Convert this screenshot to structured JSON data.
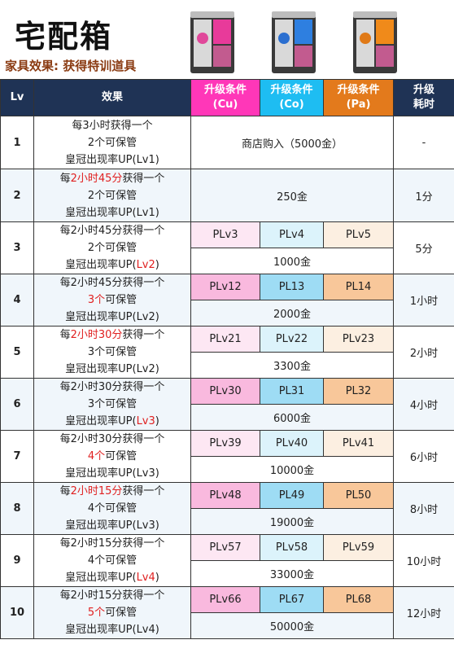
{
  "header": {
    "title": "宅配箱",
    "subtitle": "家具效果: 获得特训道具"
  },
  "columns": {
    "lv": "Lv",
    "effect": "效果",
    "cu_1": "升级条件",
    "cu_2": "(Cu)",
    "co_1": "升级条件",
    "co_2": "(Co)",
    "pa_1": "升级条件",
    "pa_2": "(Pa)",
    "time_1": "升级",
    "time_2": "耗时"
  },
  "rows": [
    {
      "lv": "1",
      "e1a": "每3小时获得一个",
      "e1b": "",
      "e1c": "",
      "e2a": "2个可保管",
      "e2b": "",
      "e3a": "皇冠出现率UP(Lv1)",
      "e3b": "",
      "full": "商店购入（5000金）",
      "time": "-"
    },
    {
      "lv": "2",
      "e1a": "每",
      "e1b": "2小时45分",
      "e1c": "获得一个",
      "e2a": "2个可保管",
      "e2b": "",
      "e3a": "皇冠出现率UP(Lv1)",
      "e3b": "",
      "full": "250金",
      "time": "1分"
    },
    {
      "lv": "3",
      "e1a": "每2小时45分获得一个",
      "e2a": "2个可保管",
      "e3a": "皇冠出现率UP(",
      "e3b": "Lv2",
      "e3c": ")",
      "cu": "PLv3",
      "co": "PLv4",
      "pa": "PLv5",
      "gold": "1000金",
      "time": "5分"
    },
    {
      "lv": "4",
      "e1a": "每2小时45分获得一个",
      "e2b": "3个",
      "e2c": "可保管",
      "e3a": "皇冠出现率UP(Lv2)",
      "cu": "PLv12",
      "co": "PL13",
      "pa": "PL14",
      "gold": "2000金",
      "time": "1小时"
    },
    {
      "lv": "5",
      "e1a": "每",
      "e1b": "2小时30分",
      "e1c": "获得一个",
      "e2a": "3个可保管",
      "e3a": "皇冠出现率UP(Lv2)",
      "cu": "PLv21",
      "co": "PLv22",
      "pa": "PLv23",
      "gold": "3300金",
      "time": "2小时"
    },
    {
      "lv": "6",
      "e1a": "每2小时30分获得一个",
      "e2a": "3个可保管",
      "e3a": "皇冠出现率UP(",
      "e3b": "Lv3",
      "e3c": ")",
      "cu": "PLv30",
      "co": "PL31",
      "pa": "PL32",
      "gold": "6000金",
      "time": "4小时"
    },
    {
      "lv": "7",
      "e1a": "每2小时30分获得一个",
      "e2b": "4个",
      "e2c": "可保管",
      "e3a": "皇冠出现率UP(Lv3)",
      "cu": "PLv39",
      "co": "PLv40",
      "pa": "PLv41",
      "gold": "10000金",
      "time": "6小时"
    },
    {
      "lv": "8",
      "e1a": "每",
      "e1b": "2小时15分",
      "e1c": "获得一个",
      "e2a": "4个可保管",
      "e3a": "皇冠出现率UP(Lv3)",
      "cu": "PLv48",
      "co": "PL49",
      "pa": "PL50",
      "gold": "19000金",
      "time": "8小时"
    },
    {
      "lv": "9",
      "e1a": "每2小时15分获得一个",
      "e2a": "4个可保管",
      "e3a": "皇冠出现率UP(",
      "e3b": "Lv4",
      "e3c": ")",
      "cu": "PLv57",
      "co": "PLv58",
      "pa": "PLv59",
      "gold": "33000金",
      "time": "10小时"
    },
    {
      "lv": "10",
      "e1a": "每2小时15分获得一个",
      "e2b": "5个",
      "e2c": "可保管",
      "e3a": "皇冠出现率UP(Lv4)",
      "cu": "PLv66",
      "co": "PL67",
      "pa": "PL68",
      "gold": "50000金",
      "time": "12小时"
    }
  ],
  "colors": {
    "header_dark": "#1f3355",
    "cu": "#ff37b8",
    "co": "#1ebdf2",
    "pa": "#e37a1c",
    "highlight_red": "#e02020"
  },
  "icons": [
    "cabinet-cu-icon",
    "cabinet-co-icon",
    "cabinet-pa-icon"
  ]
}
